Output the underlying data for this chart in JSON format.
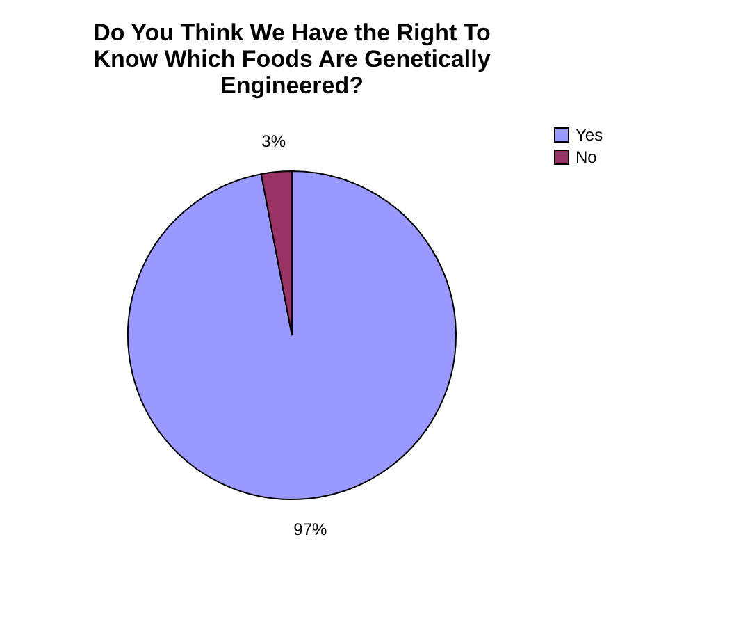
{
  "chart_data": {
    "type": "pie",
    "title": "Do You Think We Have the Right To Know Which Foods Are Genetically Engineered?",
    "categories": [
      "Yes",
      "No"
    ],
    "values": [
      97,
      3
    ],
    "colors": [
      "#9999ff",
      "#993366"
    ],
    "value_labels": [
      "97%",
      "3%"
    ],
    "legend": "right"
  }
}
